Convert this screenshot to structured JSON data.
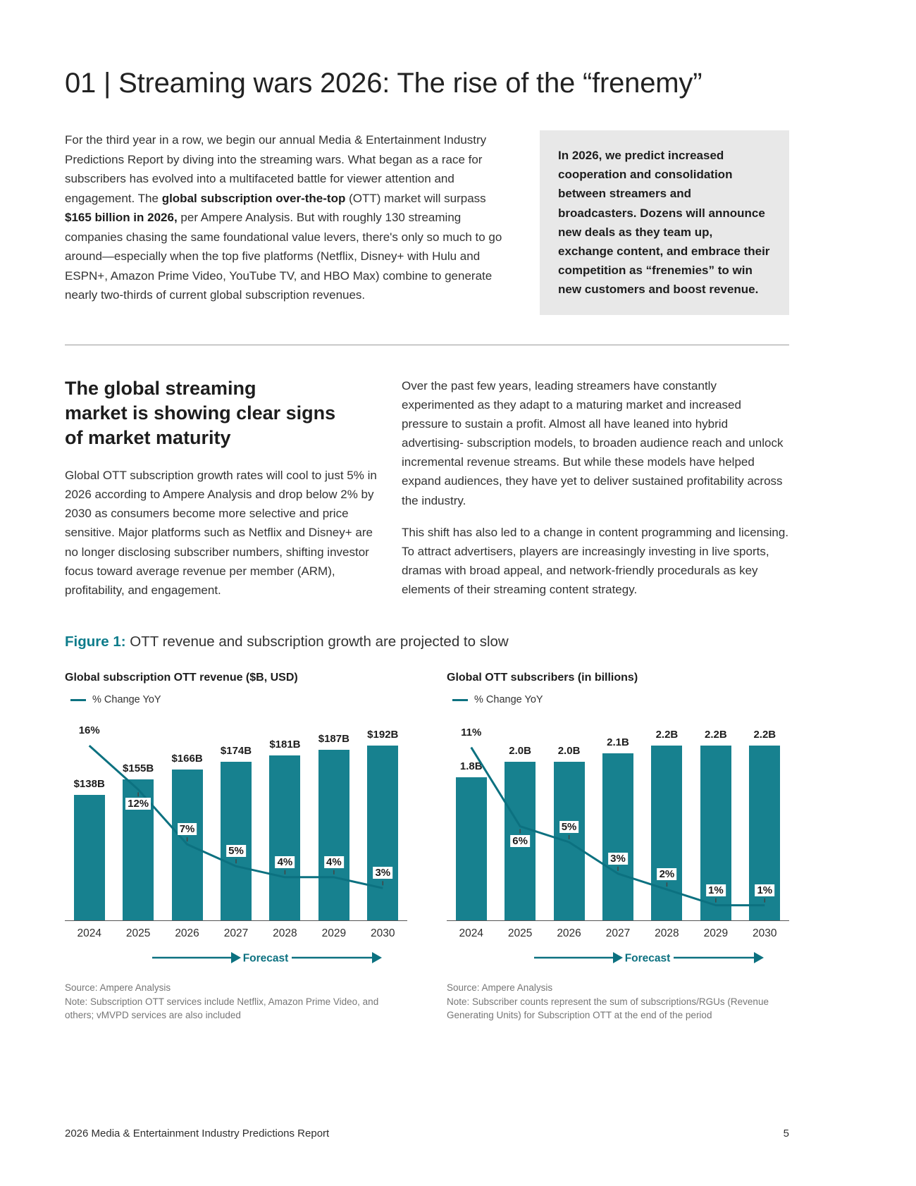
{
  "header": {
    "title": "01 | Streaming wars 2026: The rise of the “frenemy”"
  },
  "intro": {
    "segments": [
      {
        "text": "For the third year in a row, we begin our annual Media & Entertainment Industry Predictions Report by diving into the streaming wars. What began as a race for subscribers has evolved into a multifaceted battle for viewer attention and engagement. The ",
        "bold": false
      },
      {
        "text": "global subscription over-the-top",
        "bold": true
      },
      {
        "text": " (OTT) market will surpass ",
        "bold": false
      },
      {
        "text": "$165 billion in 2026,",
        "bold": true
      },
      {
        "text": " per Ampere Analysis. But with roughly 130 streaming companies chasing the same foundational value levers, there's only so much to go around—especially when the top five platforms (Netflix, Disney+ with Hulu and ESPN+, Amazon Prime Video, YouTube TV, and HBO Max) combine to generate nearly two-thirds of current global subscription revenues.",
        "bold": false
      }
    ]
  },
  "callout": {
    "text": "In 2026, we predict increased cooperation and consolidation between streamers and broadcasters. Dozens will announce new deals as they team up, exchange content, and embrace their competition as “frenemies” to win new customers and boost revenue."
  },
  "section": {
    "heading": "The global streaming\nmarket is showing clear signs\nof market maturity",
    "left_paragraph": "Global OTT subscription growth rates will cool to just 5% in 2026 according to Ampere Analysis and drop below 2% by 2030 as consumers become more selective and price sensitive. Major platforms such as Netflix and Disney+ are no longer disclosing subscriber numbers, shifting investor focus toward average revenue per member (ARM), profitability, and engagement.",
    "right_paragraph_1": "Over the past few years, leading streamers have constantly experimented as they adapt to a maturing market and increased pressure to sustain a profit. Almost all have leaned into hybrid advertising- subscription models, to broaden audience reach and unlock incremental revenue streams. But while these models have helped expand audiences, they have yet to deliver sustained profitability across the industry.",
    "right_paragraph_2": "This shift has also led to a change in content programming and licensing. To attract advertisers, players are increasingly investing in live sports, dramas with broad appeal, and network-friendly procedurals as key elements of their streaming content strategy."
  },
  "figure": {
    "label": "Figure 1:",
    "caption": "OTT revenue and subscription growth are projected to slow"
  },
  "chart_data": [
    {
      "type": "bar",
      "title": "Global subscription OTT revenue ($B, USD)",
      "legend": "% Change YoY",
      "categories": [
        "2024",
        "2025",
        "2026",
        "2027",
        "2028",
        "2029",
        "2030"
      ],
      "series": [
        {
          "name": "Revenue ($B)",
          "values": [
            138,
            155,
            166,
            174,
            181,
            187,
            192
          ],
          "labels": [
            "$138B",
            "$155B",
            "$166B",
            "$174B",
            "$181B",
            "$187B",
            "$192B"
          ]
        },
        {
          "name": "% Change YoY",
          "values": [
            16,
            12,
            7,
            5,
            4,
            4,
            3
          ],
          "labels": [
            "16%",
            "12%",
            "7%",
            "5%",
            "4%",
            "4%",
            "3%"
          ]
        }
      ],
      "pct_axis_max": 18,
      "forecast_label": "Forecast",
      "source": "Source: Ampere Analysis",
      "note": "Note: Subscription OTT services include Netflix, Amazon Prime Video, and others; vMVPD services are also included"
    },
    {
      "type": "bar",
      "title": "Global OTT subscribers (in billions)",
      "legend": "% Change YoY",
      "categories": [
        "2024",
        "2025",
        "2026",
        "2027",
        "2028",
        "2029",
        "2030"
      ],
      "series": [
        {
          "name": "Subscribers (B)",
          "values": [
            1.8,
            2.0,
            2.0,
            2.1,
            2.2,
            2.2,
            2.2
          ],
          "labels": [
            "1.8B",
            "2.0B",
            "2.0B",
            "2.1B",
            "2.2B",
            "2.2B",
            "2.2B"
          ]
        },
        {
          "name": "% Change YoY",
          "values": [
            11,
            6,
            5,
            3,
            2,
            1,
            1
          ],
          "labels": [
            "11%",
            "6%",
            "5%",
            "3%",
            "2%",
            "1%",
            "1%"
          ]
        }
      ],
      "pct_axis_max": 12.5,
      "forecast_label": "Forecast",
      "source": "Source: Ampere Analysis",
      "note": "Note: Subscriber counts represent the sum of subscriptions/RGUs (Revenue Generating Units) for Subscription OTT at the end of the period"
    }
  ],
  "footer": {
    "left": "2026 Media & Entertainment Industry Predictions Report",
    "page_number": "5"
  },
  "colors": {
    "teal_bar": "#17818F",
    "teal_line": "#0C7180",
    "teal_accent": "#0E7C8B",
    "callout_bg": "#E8E8E8",
    "text_dark": "#222222",
    "note_gray": "#767676"
  }
}
